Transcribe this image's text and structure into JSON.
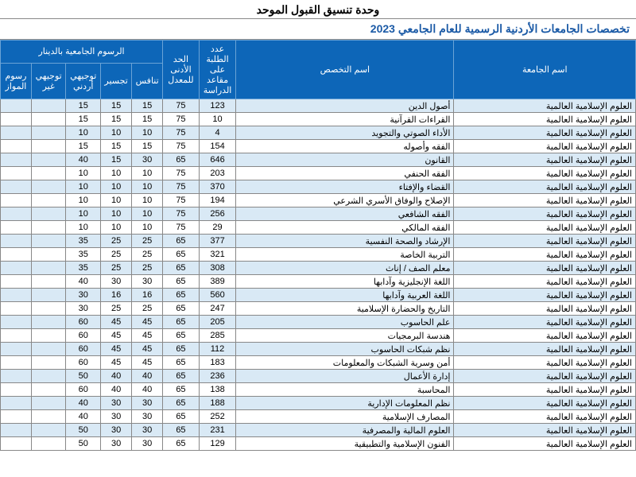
{
  "header": "وحدة تنسيق القبول الموحد",
  "subheader": "تخصصات الجامعات الأردنية الرسمية للعام الجامعي 2023",
  "columns": {
    "university": "اسم الجامعة",
    "specialization": "اسم التخصص",
    "seats": "عدد الطلبة على مقاعد الدراسة",
    "min_avg": "الحد الأدنى للمعدل",
    "fees_group": "الرسوم الجامعية بالدينار",
    "compete": "تنافس",
    "bridge": "تجسير",
    "tawjihi_jo": "توجيهي أردني",
    "tawjihi_other": "توجيهي غير",
    "parallel": "رسوم المواز"
  },
  "university_name": "العلوم الإسلامية العالمية",
  "rows": [
    {
      "spec": "أصول الدين",
      "seats": 123,
      "min": 75,
      "c": 15,
      "b": 15,
      "t": 15
    },
    {
      "spec": "القراءات القرآنية",
      "seats": 10,
      "min": 75,
      "c": 15,
      "b": 15,
      "t": 15
    },
    {
      "spec": "الأداء الصوتي والتجويد",
      "seats": 4,
      "min": 75,
      "c": 10,
      "b": 10,
      "t": 10
    },
    {
      "spec": "الفقه وأصوله",
      "seats": 154,
      "min": 75,
      "c": 15,
      "b": 15,
      "t": 15
    },
    {
      "spec": "القانون",
      "seats": 646,
      "min": 65,
      "c": 30,
      "b": 15,
      "t": 40
    },
    {
      "spec": "الفقه الحنفي",
      "seats": 203,
      "min": 75,
      "c": 10,
      "b": 10,
      "t": 10
    },
    {
      "spec": "القضاء والإفتاء",
      "seats": 370,
      "min": 75,
      "c": 10,
      "b": 10,
      "t": 10
    },
    {
      "spec": "الإصلاح والوفاق الأسري الشرعي",
      "seats": 194,
      "min": 75,
      "c": 10,
      "b": 10,
      "t": 10
    },
    {
      "spec": "الفقه الشافعي",
      "seats": 256,
      "min": 75,
      "c": 10,
      "b": 10,
      "t": 10
    },
    {
      "spec": "الفقه المالكي",
      "seats": 29,
      "min": 75,
      "c": 10,
      "b": 10,
      "t": 10
    },
    {
      "spec": "الإرشاد والصحة النفسية",
      "seats": 377,
      "min": 65,
      "c": 25,
      "b": 25,
      "t": 35
    },
    {
      "spec": "التربية الخاصة",
      "seats": 321,
      "min": 65,
      "c": 25,
      "b": 25,
      "t": 35
    },
    {
      "spec": "معلم الصف / إناث",
      "seats": 308,
      "min": 65,
      "c": 25,
      "b": 25,
      "t": 35
    },
    {
      "spec": "اللغة الإنجليزية وآدابها",
      "seats": 389,
      "min": 65,
      "c": 30,
      "b": 30,
      "t": 40
    },
    {
      "spec": "اللغة العربية وآدابها",
      "seats": 560,
      "min": 65,
      "c": 16,
      "b": 16,
      "t": 30
    },
    {
      "spec": "التاريخ والحضارة الإسلامية",
      "seats": 247,
      "min": 65,
      "c": 25,
      "b": 25,
      "t": 30
    },
    {
      "spec": "علم الحاسوب",
      "seats": 205,
      "min": 65,
      "c": 45,
      "b": 45,
      "t": 60
    },
    {
      "spec": "هندسة البرمجيات",
      "seats": 285,
      "min": 65,
      "c": 45,
      "b": 45,
      "t": 60
    },
    {
      "spec": "نظم شبكات الحاسوب",
      "seats": 112,
      "min": 65,
      "c": 45,
      "b": 45,
      "t": 60
    },
    {
      "spec": "أمن وسرية الشبكات والمعلومات",
      "seats": 183,
      "min": 65,
      "c": 45,
      "b": 45,
      "t": 60
    },
    {
      "spec": "إدارة الأعمال",
      "seats": 236,
      "min": 65,
      "c": 40,
      "b": 40,
      "t": 50
    },
    {
      "spec": "المحاسبة",
      "seats": 138,
      "min": 65,
      "c": 40,
      "b": 40,
      "t": 60
    },
    {
      "spec": "نظم المعلومات الإدارية",
      "seats": 188,
      "min": 65,
      "c": 30,
      "b": 30,
      "t": 40
    },
    {
      "spec": "المصارف الإسلامية",
      "seats": 252,
      "min": 65,
      "c": 30,
      "b": 30,
      "t": 40
    },
    {
      "spec": "العلوم المالية والمصرفية",
      "seats": 231,
      "min": 65,
      "c": 30,
      "b": 30,
      "t": 50
    },
    {
      "spec": "الفنون الإسلامية والتطبيقية",
      "seats": 129,
      "min": 65,
      "c": 30,
      "b": 30,
      "t": 50
    }
  ],
  "colors": {
    "header_bg": "#0d66b8",
    "header_fg": "#ffffff",
    "row_even_bg": "#d9e9f5",
    "row_odd_bg": "#ffffff",
    "border": "#888888",
    "subheader_fg": "#1b5aa6"
  }
}
